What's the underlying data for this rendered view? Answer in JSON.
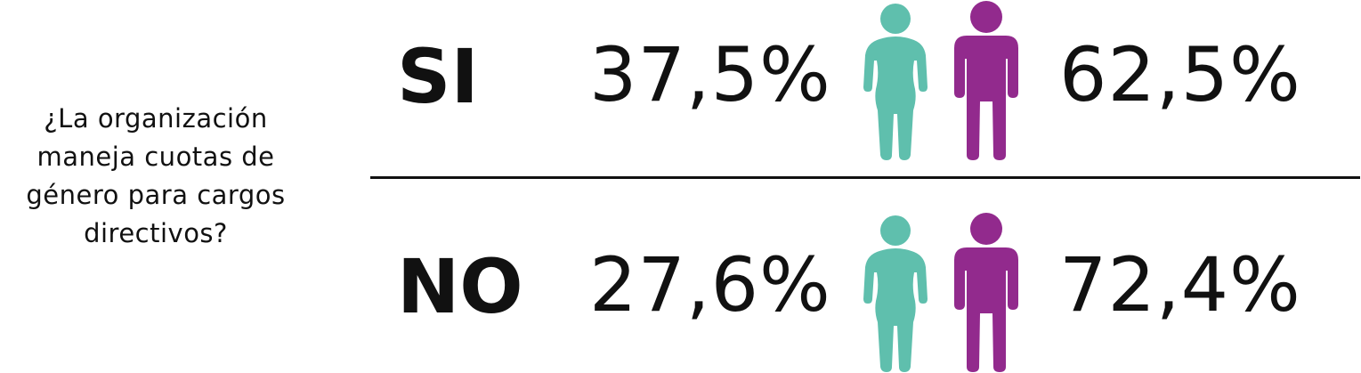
{
  "question": {
    "lines": [
      "¿La organización",
      "maneja cuotas de",
      "género para cargos",
      "directivos?"
    ]
  },
  "rows": [
    {
      "answer": "SI",
      "women_pct": "37,5%",
      "men_pct": "62,5%"
    },
    {
      "answer": "NO",
      "women_pct": "27,6%",
      "men_pct": "72,4%"
    }
  ],
  "icons": {
    "woman": "woman-figure-icon",
    "men": "man-figure-icon"
  },
  "colors": {
    "woman": "#5fbfad",
    "man": "#922a8d",
    "text": "#111111"
  }
}
